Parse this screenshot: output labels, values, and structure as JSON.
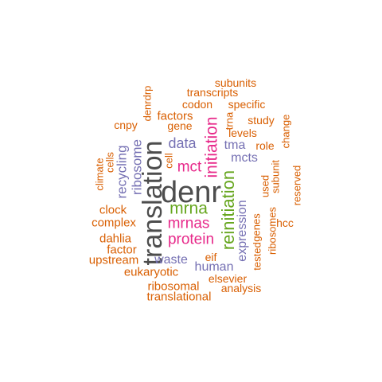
{
  "palette": {
    "gray": "#4d4d4d",
    "orange": "#d95f02",
    "purple": "#7570b3",
    "magenta": "#e7298a",
    "green": "#66a61e"
  },
  "words": [
    {
      "text": "denr",
      "color": "gray",
      "vertical": false
    },
    {
      "text": "translation",
      "color": "gray",
      "vertical": true
    },
    {
      "text": "reinitiation",
      "color": "green",
      "vertical": true
    },
    {
      "text": "mrna",
      "color": "green",
      "vertical": false
    },
    {
      "text": "initiation",
      "color": "magenta",
      "vertical": true
    },
    {
      "text": "protein",
      "color": "magenta",
      "vertical": false
    },
    {
      "text": "mrnas",
      "color": "magenta",
      "vertical": false
    },
    {
      "text": "mct",
      "color": "magenta",
      "vertical": false
    },
    {
      "text": "data",
      "color": "purple",
      "vertical": false
    },
    {
      "text": "ribosome",
      "color": "purple",
      "vertical": true
    },
    {
      "text": "recycling",
      "color": "purple",
      "vertical": true
    },
    {
      "text": "mcts",
      "color": "purple",
      "vertical": false
    },
    {
      "text": "tma",
      "color": "purple",
      "vertical": false
    },
    {
      "text": "expression",
      "color": "purple",
      "vertical": true
    },
    {
      "text": "waste",
      "color": "purple",
      "vertical": false
    },
    {
      "text": "human",
      "color": "purple",
      "vertical": false
    },
    {
      "text": "factors",
      "color": "orange",
      "vertical": false
    },
    {
      "text": "gene",
      "color": "orange",
      "vertical": false
    },
    {
      "text": "codon",
      "color": "orange",
      "vertical": false
    },
    {
      "text": "transcripts",
      "color": "orange",
      "vertical": false
    },
    {
      "text": "subunits",
      "color": "orange",
      "vertical": false
    },
    {
      "text": "specific",
      "color": "orange",
      "vertical": false
    },
    {
      "text": "study",
      "color": "orange",
      "vertical": false
    },
    {
      "text": "levels",
      "color": "orange",
      "vertical": false
    },
    {
      "text": "role",
      "color": "orange",
      "vertical": false
    },
    {
      "text": "cnpy",
      "color": "orange",
      "vertical": false
    },
    {
      "text": "denrdrp",
      "color": "orange",
      "vertical": true
    },
    {
      "text": "trna",
      "color": "orange",
      "vertical": true
    },
    {
      "text": "change",
      "color": "orange",
      "vertical": true
    },
    {
      "text": "cell",
      "color": "orange",
      "vertical": true
    },
    {
      "text": "cells",
      "color": "orange",
      "vertical": true
    },
    {
      "text": "climate",
      "color": "orange",
      "vertical": true
    },
    {
      "text": "subunit",
      "color": "orange",
      "vertical": true
    },
    {
      "text": "reserved",
      "color": "orange",
      "vertical": true
    },
    {
      "text": "used",
      "color": "orange",
      "vertical": true
    },
    {
      "text": "genes",
      "color": "orange",
      "vertical": true
    },
    {
      "text": "ribosomes",
      "color": "orange",
      "vertical": true
    },
    {
      "text": "tested",
      "color": "orange",
      "vertical": true
    },
    {
      "text": "hcc",
      "color": "orange",
      "vertical": false
    },
    {
      "text": "clock",
      "color": "orange",
      "vertical": false
    },
    {
      "text": "complex",
      "color": "orange",
      "vertical": false
    },
    {
      "text": "dahlia",
      "color": "orange",
      "vertical": false
    },
    {
      "text": "factor",
      "color": "orange",
      "vertical": false
    },
    {
      "text": "upstream",
      "color": "orange",
      "vertical": false
    },
    {
      "text": "eif",
      "color": "orange",
      "vertical": false
    },
    {
      "text": "eukaryotic",
      "color": "orange",
      "vertical": false
    },
    {
      "text": "elsevier",
      "color": "orange",
      "vertical": false
    },
    {
      "text": "ribosomal",
      "color": "orange",
      "vertical": false
    },
    {
      "text": "analysis",
      "color": "orange",
      "vertical": false
    },
    {
      "text": "translational",
      "color": "orange",
      "vertical": false
    }
  ]
}
